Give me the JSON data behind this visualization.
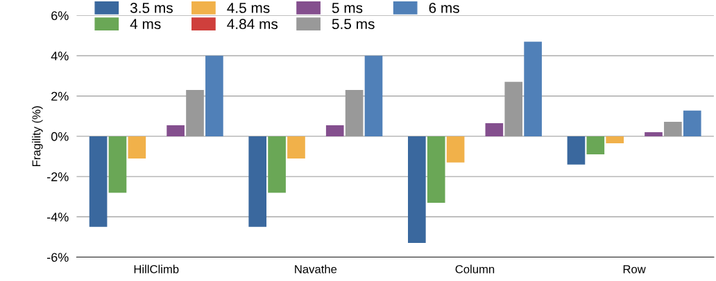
{
  "chart_data": {
    "type": "bar",
    "ylabel": "Fragility (%)",
    "categories": [
      "HillClimb",
      "Navathe",
      "Column",
      "Row"
    ],
    "series": [
      {
        "name": "3.5 ms",
        "color": "#3a689e",
        "values": [
          -4.5,
          -4.5,
          -5.3,
          -1.4
        ]
      },
      {
        "name": "4 ms",
        "color": "#6aa756",
        "values": [
          -2.8,
          -2.8,
          -3.3,
          -0.9
        ]
      },
      {
        "name": "4.5 ms",
        "color": "#f1b14a",
        "values": [
          -1.1,
          -1.1,
          -1.3,
          -0.35
        ]
      },
      {
        "name": "4.84 ms",
        "color": "#cf3f3c",
        "values": [
          0,
          0,
          0,
          0
        ]
      },
      {
        "name": "5 ms",
        "color": "#844f8e",
        "values": [
          0.55,
          0.55,
          0.65,
          0.2
        ]
      },
      {
        "name": "5.5 ms",
        "color": "#999999",
        "values": [
          2.3,
          2.3,
          2.7,
          0.72
        ]
      },
      {
        "name": "6 ms",
        "color": "#5080b8",
        "values": [
          4.0,
          4.0,
          4.7,
          1.28
        ]
      }
    ],
    "ylim": [
      -6,
      6
    ],
    "yticks": [
      {
        "value": -6,
        "label": "-6%"
      },
      {
        "value": -4,
        "label": "-4%"
      },
      {
        "value": -2,
        "label": "-2%"
      },
      {
        "value": 0,
        "label": "0%"
      },
      {
        "value": 2,
        "label": "2%"
      },
      {
        "value": 4,
        "label": "4%"
      },
      {
        "value": 6,
        "label": "6%"
      }
    ],
    "grid": "y",
    "legend": "top left"
  }
}
